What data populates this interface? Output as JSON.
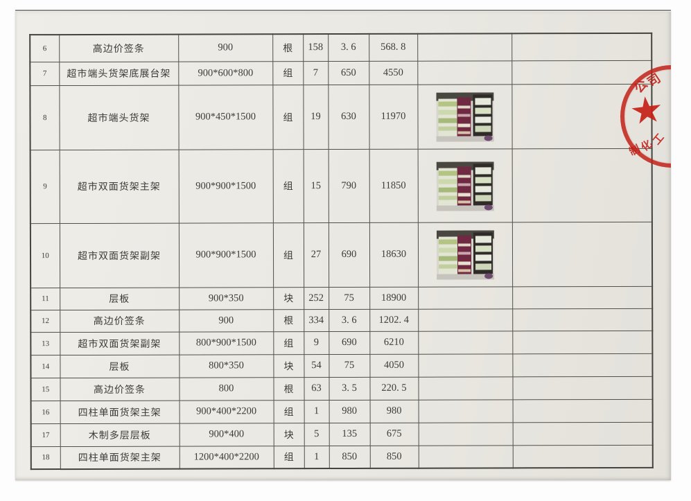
{
  "table": {
    "rows": [
      {
        "no": "6",
        "name": "高边价签条",
        "spec": "900",
        "unit": "根",
        "qty": "158",
        "price": "3. 6",
        "amount": "568. 8",
        "photo": false,
        "remark": ""
      },
      {
        "no": "7",
        "name": "超市端头货架底展台架",
        "spec": "900*600*800",
        "unit": "组",
        "qty": "7",
        "price": "650",
        "amount": "4550",
        "photo": false,
        "remark": ""
      },
      {
        "no": "8",
        "name": "超市端头货架",
        "spec": "900*450*1500",
        "unit": "组",
        "qty": "19",
        "price": "630",
        "amount": "11970",
        "photo": true,
        "remark": ""
      },
      {
        "no": "9",
        "name": "超市双面货架主架",
        "spec": "900*900*1500",
        "unit": "组",
        "qty": "15",
        "price": "790",
        "amount": "11850",
        "photo": true,
        "remark": ""
      },
      {
        "no": "10",
        "name": "超市双面货架副架",
        "spec": "900*900*1500",
        "unit": "组",
        "qty": "27",
        "price": "690",
        "amount": "18630",
        "photo": true,
        "remark": ""
      },
      {
        "no": "11",
        "name": "层板",
        "spec": "900*350",
        "unit": "块",
        "qty": "252",
        "price": "75",
        "amount": "18900",
        "photo": false,
        "remark": ""
      },
      {
        "no": "12",
        "name": "高边价签条",
        "spec": "900",
        "unit": "根",
        "qty": "334",
        "price": "3. 6",
        "amount": "1202. 4",
        "photo": false,
        "remark": ""
      },
      {
        "no": "13",
        "name": "超市双面货架副架",
        "spec": "800*900*1500",
        "unit": "组",
        "qty": "9",
        "price": "690",
        "amount": "6210",
        "photo": false,
        "remark": ""
      },
      {
        "no": "14",
        "name": "层板",
        "spec": "800*350",
        "unit": "块",
        "qty": "54",
        "price": "75",
        "amount": "4050",
        "photo": false,
        "remark": ""
      },
      {
        "no": "15",
        "name": "高边价签条",
        "spec": "800",
        "unit": "根",
        "qty": "63",
        "price": "3. 5",
        "amount": "220. 5",
        "photo": false,
        "remark": ""
      },
      {
        "no": "16",
        "name": "四柱单面货架主架",
        "spec": "900*400*2200",
        "unit": "组",
        "qty": "1",
        "price": "980",
        "amount": "980",
        "photo": false,
        "remark": ""
      },
      {
        "no": "17",
        "name": "木制多层层板",
        "spec": "900*400",
        "unit": "块",
        "qty": "5",
        "price": "135",
        "amount": "675",
        "photo": false,
        "remark": ""
      },
      {
        "no": "18",
        "name": "四柱单面货架主架",
        "spec": "1200*400*2200",
        "unit": "组",
        "qty": "1",
        "price": "850",
        "amount": "850",
        "photo": false,
        "remark": ""
      }
    ]
  },
  "stamp": {
    "chars": [
      "公",
      "司",
      "制",
      "化",
      "工"
    ],
    "color": "#c22119"
  },
  "colors": {
    "paper": "#ebe9e3",
    "table_border": "#514f4a",
    "text": "#3d3b38",
    "seal_red": "#c22119"
  }
}
